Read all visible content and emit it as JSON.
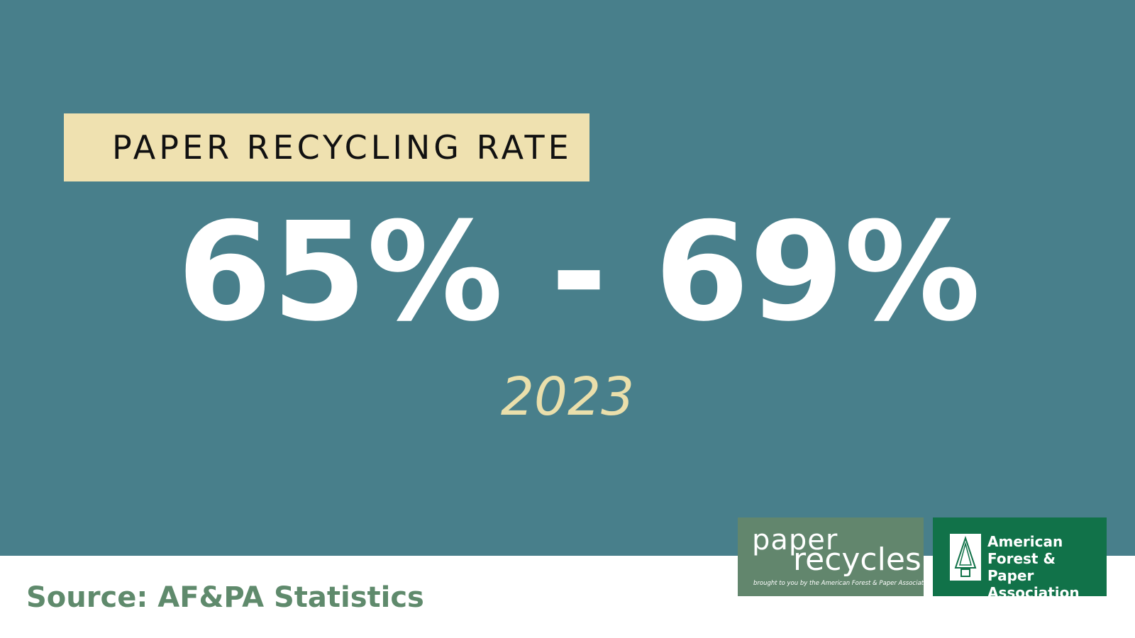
{
  "header": {
    "title": "PAPER RECYCLING RATE"
  },
  "stat": {
    "value": "65% - 69%",
    "year": "2023"
  },
  "footer": {
    "source": "Source: AF&PA Statistics"
  },
  "logos": [
    {
      "line1": "paper",
      "line2": "recycles",
      "tagline": "brought to you by the American Forest & Paper Association"
    },
    {
      "lines": [
        "American",
        "Forest & Paper",
        "Association"
      ]
    }
  ]
}
